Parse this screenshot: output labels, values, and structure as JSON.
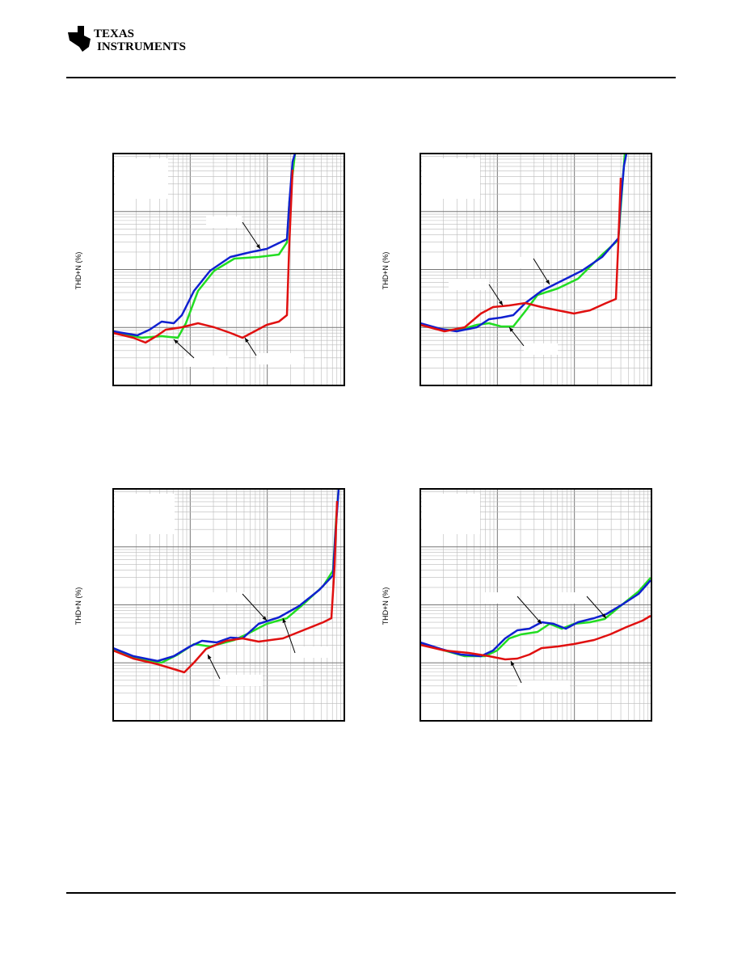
{
  "header": {
    "logo_lines": [
      "TEXAS",
      "INSTRUMENTS"
    ]
  },
  "charts": [
    {
      "y_label": "THD+N (%)"
    },
    {
      "y_label": "THD+N (%)"
    },
    {
      "y_label": "THD+N (%)"
    },
    {
      "y_label": "THD+N (%)"
    }
  ]
}
